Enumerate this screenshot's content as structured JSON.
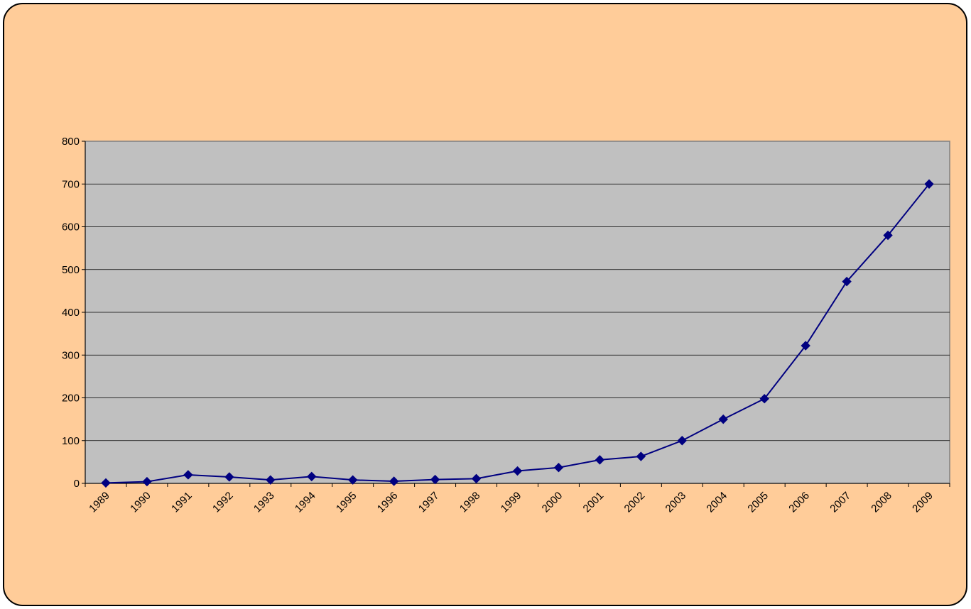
{
  "colors": {
    "background": "#FFCC99",
    "plot_area": "#C0C0C0",
    "series_line": "#000080",
    "gridline": "#000000"
  },
  "chart_data": {
    "type": "line",
    "title": "",
    "xlabel": "",
    "ylabel": "",
    "x": [
      "1989",
      "1990",
      "1991",
      "1992",
      "1993",
      "1994",
      "1995",
      "1996",
      "1997",
      "1998",
      "1999",
      "2000",
      "2001",
      "2002",
      "2003",
      "2004",
      "2005",
      "2006",
      "2007",
      "2008",
      "2009"
    ],
    "series": [
      {
        "marker": "diamond",
        "values": [
          1,
          4,
          20,
          15,
          8,
          16,
          8,
          5,
          9,
          11,
          29,
          37,
          55,
          63,
          100,
          150,
          198,
          322,
          472,
          580,
          700
        ]
      }
    ],
    "ylim": [
      0,
      800
    ],
    "yticks": [
      0,
      100,
      200,
      300,
      400,
      500,
      600,
      700,
      800
    ],
    "grid": true,
    "legend": "none"
  }
}
